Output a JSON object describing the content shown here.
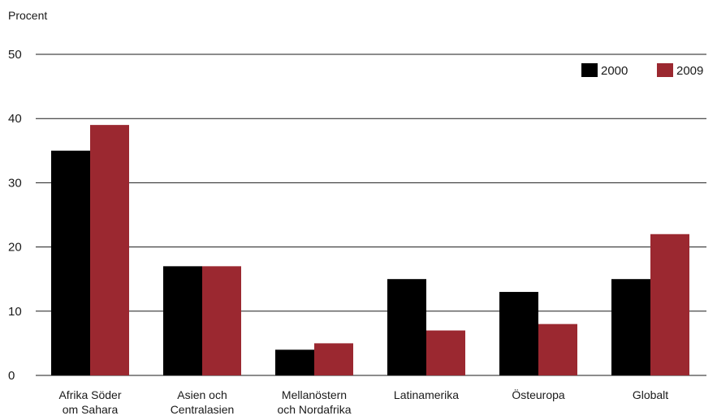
{
  "chart_data": {
    "type": "bar",
    "ylabel": "Procent",
    "ylim": [
      0,
      50
    ],
    "yticks": [
      "0",
      "10",
      "20",
      "30",
      "40",
      "50"
    ],
    "categories": [
      [
        "Afrika Söder",
        "om Sahara"
      ],
      [
        "Asien och",
        "Centralasien"
      ],
      [
        "Mellanöstern",
        "och Nordafrika"
      ],
      [
        "Latinamerika"
      ],
      [
        "Östeuropa"
      ],
      [
        "Globalt"
      ]
    ],
    "series": [
      {
        "name": "2000",
        "color": "#000000",
        "values": [
          35,
          17,
          4,
          15,
          13,
          15
        ]
      },
      {
        "name": "2009",
        "color": "#9b2830",
        "values": [
          39,
          17,
          5,
          7,
          8,
          22
        ]
      }
    ],
    "grid": true,
    "legend_position": "top-right"
  }
}
